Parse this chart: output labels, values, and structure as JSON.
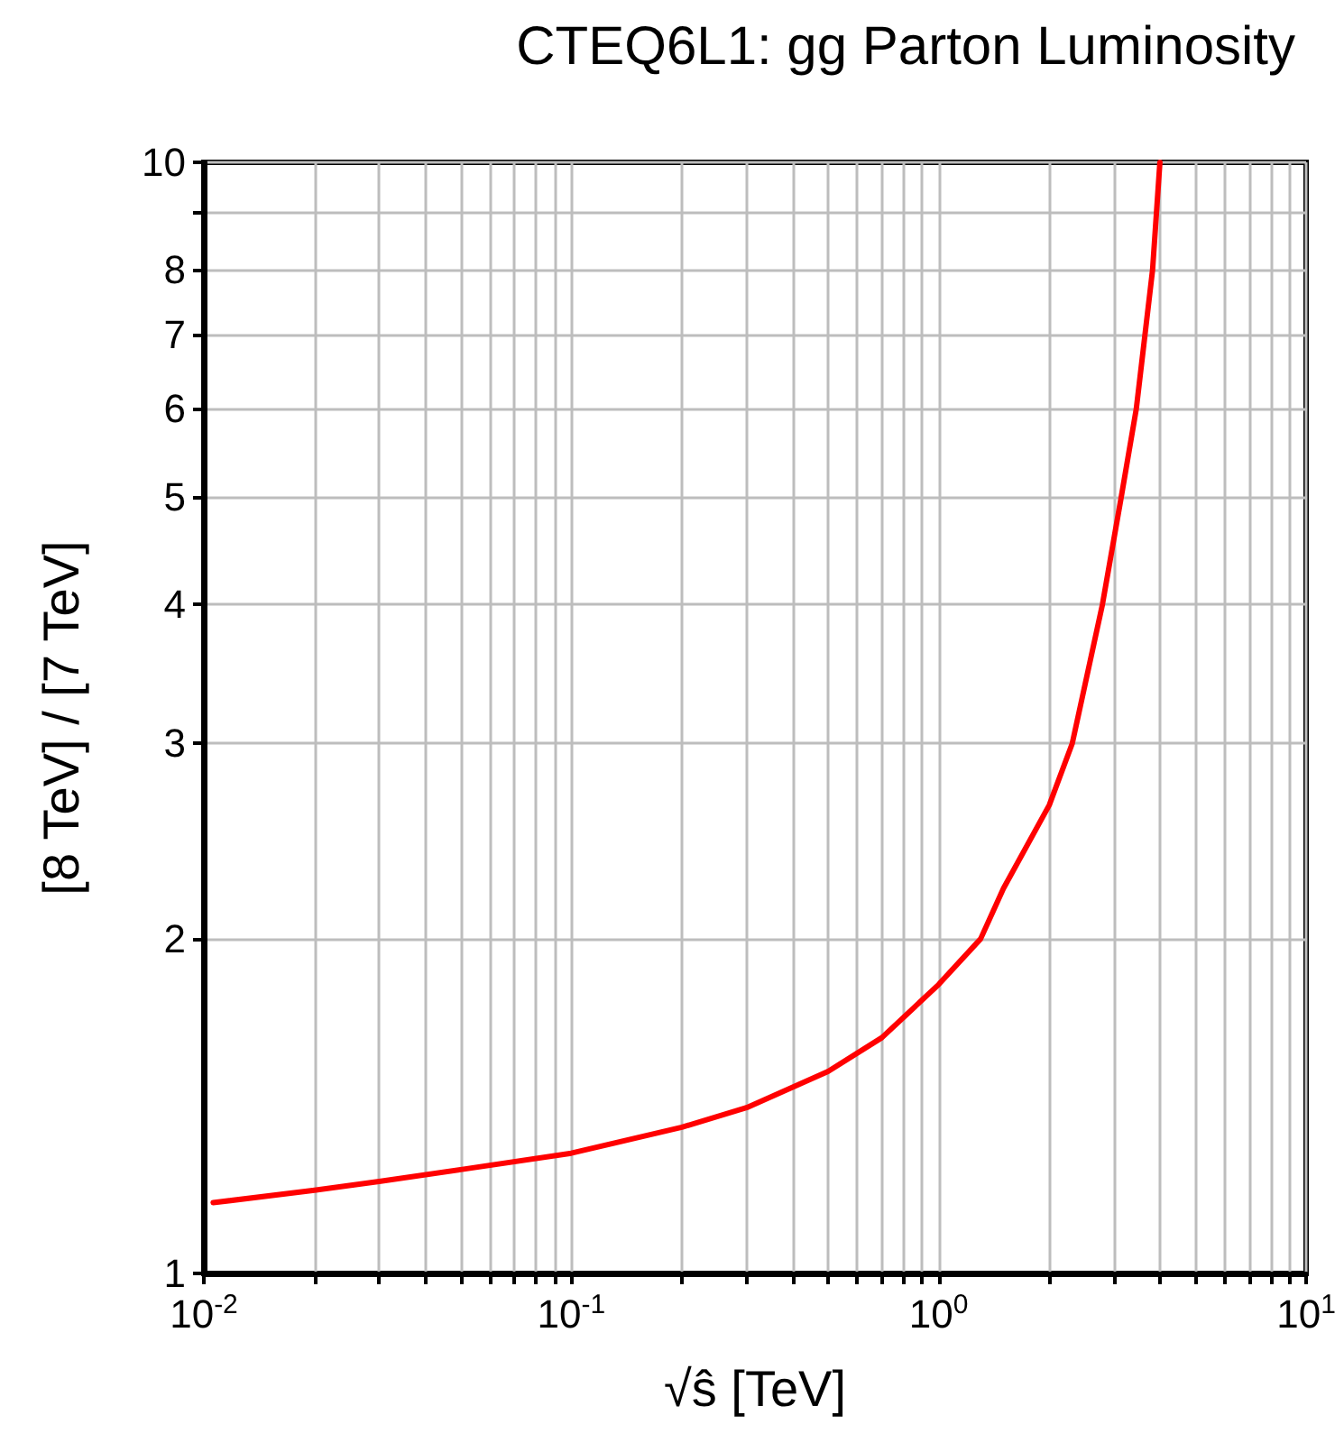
{
  "chart_data": {
    "type": "line",
    "title": "CTEQ6L1: gg Parton Luminosity",
    "xlabel": "√ŝ [TeV]",
    "ylabel": "[8 TeV] / [7 TeV]",
    "log": "xy",
    "grid": true,
    "marker": "none",
    "line_style": "solid",
    "xlim": [
      0.01,
      10
    ],
    "ylim": [
      1,
      10
    ],
    "xticks": [
      {
        "value": 0.01,
        "label": "10$^{-2}$"
      },
      {
        "value": 0.02,
        "label": null
      },
      {
        "value": 0.03,
        "label": null
      },
      {
        "value": 0.04,
        "label": null
      },
      {
        "value": 0.05,
        "label": null
      },
      {
        "value": 0.06,
        "label": null
      },
      {
        "value": 0.07,
        "label": null
      },
      {
        "value": 0.08,
        "label": null
      },
      {
        "value": 0.09,
        "label": null
      },
      {
        "value": 0.1,
        "label": "10$^{-1}$"
      },
      {
        "value": 0.2,
        "label": null
      },
      {
        "value": 0.3,
        "label": null
      },
      {
        "value": 0.4,
        "label": null
      },
      {
        "value": 0.5,
        "label": null
      },
      {
        "value": 0.6,
        "label": null
      },
      {
        "value": 0.7,
        "label": null
      },
      {
        "value": 0.8,
        "label": null
      },
      {
        "value": 0.9,
        "label": null
      },
      {
        "value": 1,
        "label": "10$^{0}$"
      },
      {
        "value": 2,
        "label": null
      },
      {
        "value": 3,
        "label": null
      },
      {
        "value": 4,
        "label": null
      },
      {
        "value": 5,
        "label": null
      },
      {
        "value": 6,
        "label": null
      },
      {
        "value": 7,
        "label": null
      },
      {
        "value": 8,
        "label": null
      },
      {
        "value": 9,
        "label": null
      },
      {
        "value": 10,
        "label": "10$^{1}$"
      }
    ],
    "yticks": [
      1,
      2,
      3,
      4,
      5,
      6,
      7,
      8,
      {
        "value": 9,
        "label": null
      },
      10
    ],
    "series": [
      {
        "color": "#ff0000",
        "x": [
          0.0106,
          0.02,
          0.03,
          0.05,
          0.1,
          0.2,
          0.3,
          0.5,
          0.7,
          1,
          1.3,
          1.5,
          2,
          2.31,
          2.79,
          3.14,
          3.45,
          3.82,
          4.0
        ],
        "values": [
          1.158,
          1.188,
          1.21,
          1.24,
          1.283,
          1.354,
          1.41,
          1.52,
          1.63,
          1.82,
          2,
          2.22,
          2.64,
          3,
          4,
          5,
          6,
          8,
          10
        ]
      }
    ]
  }
}
